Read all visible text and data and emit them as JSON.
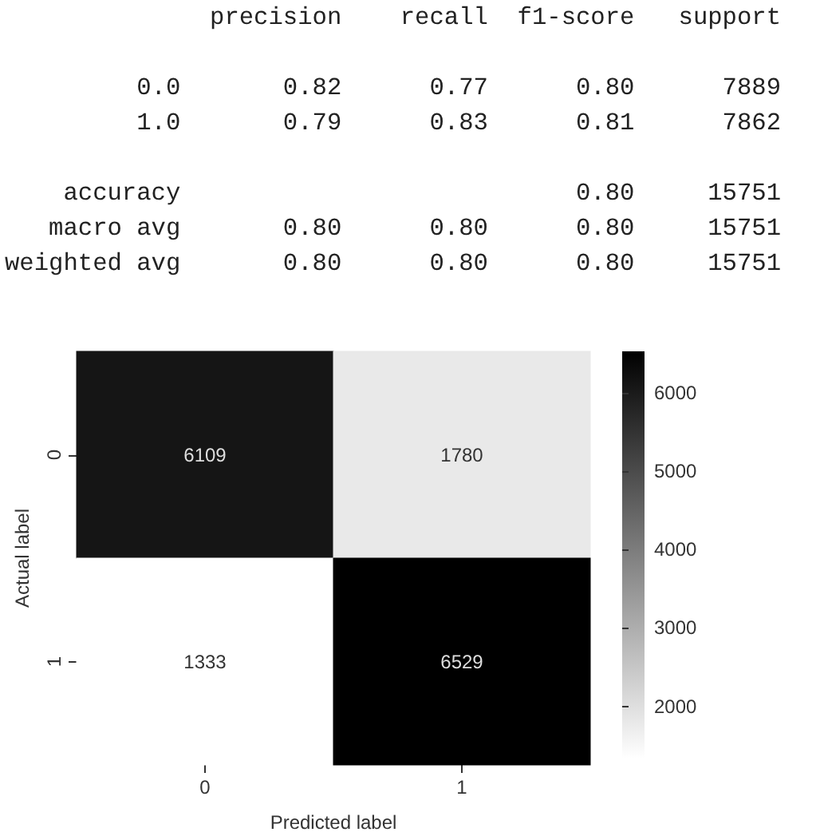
{
  "chart_data": {
    "type": "heatmap",
    "xlabel": "Predicted label",
    "ylabel": "Actual label",
    "categories": [
      "0",
      "1"
    ],
    "y_categories": [
      "0",
      "1"
    ],
    "cells": [
      [
        6109,
        1780
      ],
      [
        1333,
        6529
      ]
    ],
    "clim": [
      1333,
      6529
    ],
    "cticks": [
      2000,
      3000,
      4000,
      5000,
      6000
    ],
    "data_labels": true,
    "annotations": [
      "              precision    recall  f1-score   support",
      "         0.0       0.82      0.77      0.80      7889",
      "         1.0       0.79      0.83      0.81      7862",
      "    accuracy                           0.80     15751",
      "   macro avg       0.80      0.80      0.80     15751",
      "weighted avg       0.80      0.80      0.80     15751"
    ]
  }
}
